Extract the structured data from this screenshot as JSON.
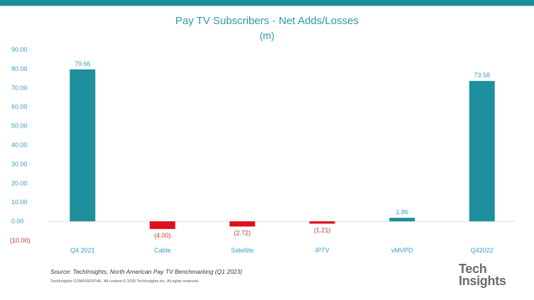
{
  "chart_data": {
    "type": "bar",
    "title": "Pay TV Subscribers - Net Adds/Losses",
    "subtitle": "(m)",
    "categories": [
      "Q4 2021",
      "Cable",
      "Satellite",
      "IPTV",
      "vMVPD",
      "Q42022"
    ],
    "values": [
      79.66,
      -4.0,
      -2.72,
      -1.21,
      1.86,
      73.58
    ],
    "data_labels": [
      "79.66",
      "(4.00)",
      "(2.72)",
      "(1.21)",
      "1.86",
      "73.58"
    ],
    "ylim": [
      -10,
      90
    ],
    "yticks": [
      90,
      80,
      70,
      60,
      50,
      40,
      30,
      20,
      10,
      0,
      -10
    ],
    "ytick_labels": [
      "90.00",
      "80.00",
      "70.00",
      "60.00",
      "50.00",
      "40.00",
      "30.00",
      "20.00",
      "10.00",
      "0.00",
      "(10.00)"
    ],
    "grid": false,
    "colors": {
      "positive": "#1e8f9c",
      "negative": "#e0101a",
      "axis_text": "#3b9cc4",
      "negative_text": "#c0392b",
      "title": "#2a9aa6"
    }
  },
  "footer": {
    "source": "Source: TechInsights, North American Pay TV Benchmarking (Q1 2023)",
    "confidential": "TechInsights CONFIDENTIAL. All content © 2020 TechInsights Inc. All rights reserved."
  },
  "logo": {
    "line1": "Tech",
    "line2": "Insights"
  }
}
